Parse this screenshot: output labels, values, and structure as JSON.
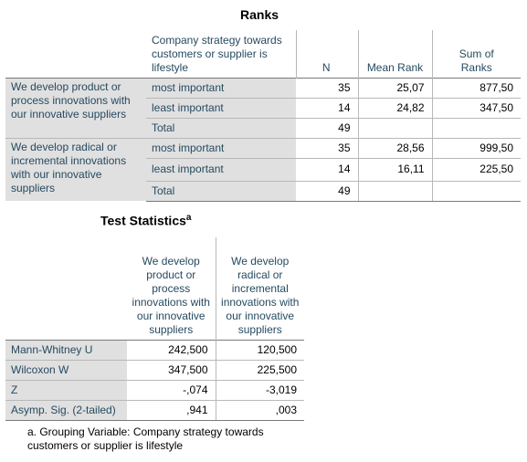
{
  "ranks": {
    "title": "Ranks",
    "header": {
      "grouping": "Company strategy towards customers or supplier is lifestyle",
      "n": "N",
      "mean_rank": "Mean Rank",
      "sum_of_ranks": "Sum of Ranks"
    },
    "groups": [
      {
        "label": "We develop product or process innovations with our innovative suppliers",
        "rows": [
          {
            "level": "most important",
            "n": "35",
            "mean_rank": "25,07",
            "sum": "877,50"
          },
          {
            "level": "least important",
            "n": "14",
            "mean_rank": "24,82",
            "sum": "347,50"
          },
          {
            "level": "Total",
            "n": "49",
            "mean_rank": "",
            "sum": ""
          }
        ]
      },
      {
        "label": "We develop radical or incremental innovations with our innovative suppliers",
        "rows": [
          {
            "level": "most important",
            "n": "35",
            "mean_rank": "28,56",
            "sum": "999,50"
          },
          {
            "level": "least important",
            "n": "14",
            "mean_rank": "16,11",
            "sum": "225,50"
          },
          {
            "level": "Total",
            "n": "49",
            "mean_rank": "",
            "sum": ""
          }
        ]
      }
    ]
  },
  "stats": {
    "title": "Test Statistics",
    "title_sup": "a",
    "columns": [
      "We develop product or process innovations with our innovative suppliers",
      "We develop radical or incremental innovations with our innovative suppliers"
    ],
    "rows": [
      {
        "label": "Mann-Whitney U",
        "v1": "242,500",
        "v2": "120,500"
      },
      {
        "label": "Wilcoxon W",
        "v1": "347,500",
        "v2": "225,500"
      },
      {
        "label": "Z",
        "v1": "-,074",
        "v2": "-3,019"
      },
      {
        "label": "Asymp. Sig. (2-tailed)",
        "v1": ",941",
        "v2": ",003"
      }
    ],
    "footnote": "a. Grouping Variable: Company strategy towards customers or supplier is lifestyle"
  }
}
